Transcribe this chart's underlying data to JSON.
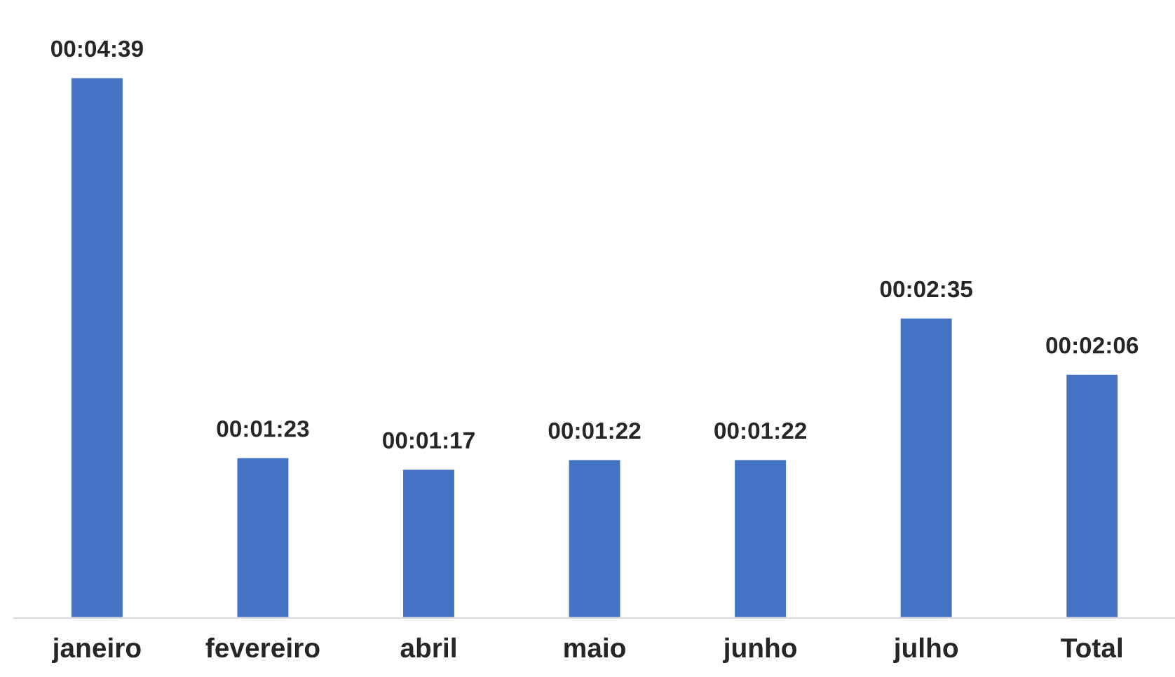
{
  "chart_data": {
    "type": "bar",
    "categories": [
      "janeiro",
      "fevereiro",
      "abril",
      "maio",
      "junho",
      "julho",
      "Total"
    ],
    "values": [
      279,
      83,
      77,
      82,
      82,
      155,
      126
    ],
    "value_labels": [
      "00:04:39",
      "00:01:23",
      "00:01:17",
      "00:01:22",
      "00:01:22",
      "00:02:35",
      "00:02:06"
    ],
    "color": "#4472c4",
    "tick_labels": "x",
    "grid": false,
    "legend": false
  }
}
